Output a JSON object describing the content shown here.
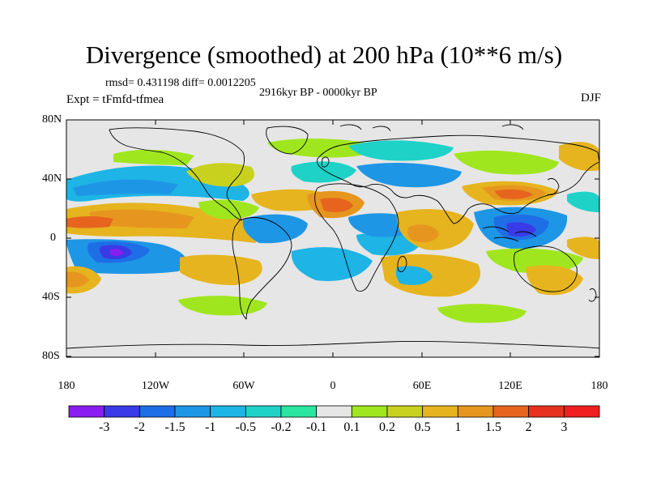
{
  "title": "Divergence (smoothed) at 200 hPa (10**6 m/s)",
  "stats_text": "rmsd= 0.431198  diff= 0.0012205",
  "period": "2916kyr BP - 0000kyr BP",
  "experiment": "Expt = tFmfd-tfmea",
  "season": "DJF",
  "map": {
    "lat_ticks": [
      "80N",
      "40N",
      "0",
      "40S",
      "80S"
    ],
    "lon_ticks": [
      "180",
      "120W",
      "60W",
      "0",
      "60E",
      "120E",
      "180"
    ],
    "background_color": "#e6e6e6"
  },
  "colorbar": {
    "labels": [
      "-3",
      "-2",
      "-1.5",
      "-1",
      "-0.5",
      "-0.2",
      "-0.1",
      "0.1",
      "0.2",
      "0.5",
      "1",
      "1.5",
      "2",
      "3"
    ],
    "colors": [
      "#8a1ef0",
      "#3a3ae6",
      "#1e6ee6",
      "#1e96e6",
      "#1eb4e6",
      "#1ed2c8",
      "#2ae6a0",
      "#e6e6e6",
      "#a0e61e",
      "#c8d21e",
      "#e6b41e",
      "#e6961e",
      "#e6641e",
      "#e6321e",
      "#f01e1e"
    ]
  }
}
